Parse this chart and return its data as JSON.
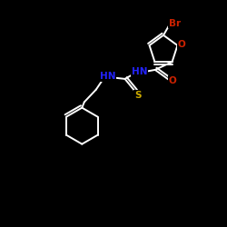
{
  "bg_color": "#000000",
  "bond_color": "#ffffff",
  "atom_colors": {
    "Br": "#cc2200",
    "O": "#cc2200",
    "N": "#2222ff",
    "S": "#ccaa00",
    "C": "#ffffff"
  },
  "figsize": [
    2.5,
    2.5
  ],
  "dpi": 100
}
